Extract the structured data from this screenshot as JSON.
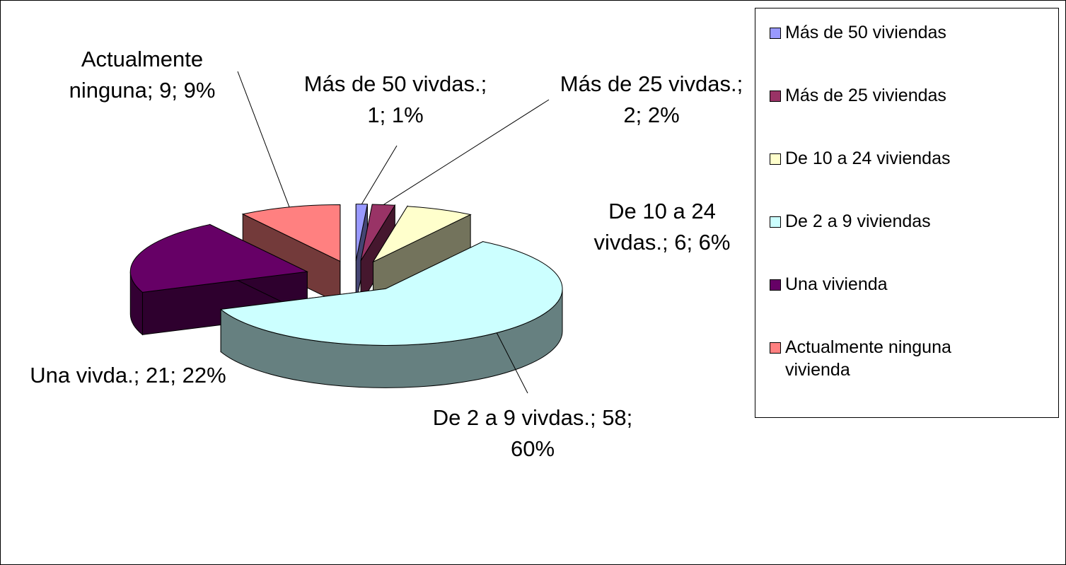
{
  "chart_data": {
    "type": "pie3d",
    "categories": [
      "Más de 50 viviendas",
      "Más de 25 viviendas",
      "De 10 a 24 viviendas",
      "De 2 a 9 viviendas",
      "Una vivienda",
      "Actualmente ninguna vivienda"
    ],
    "values": [
      1,
      2,
      6,
      58,
      21,
      9
    ],
    "value_labels": [
      "Más de 50 vivdas.; 1; 1%",
      "Más de 25 vivdas.; 2; 2%",
      "De 10 a 24 vivdas.; 6; 6%",
      "De 2 a 9 vivdas.; 58; 60%",
      "Una vivda.; 21; 22%",
      "Actualmente ninguna; 9; 9%"
    ],
    "colors": [
      "#9999ff",
      "#993366",
      "#ffffcc",
      "#ccffff",
      "#660066",
      "#ff8080"
    ],
    "legend": "right"
  }
}
